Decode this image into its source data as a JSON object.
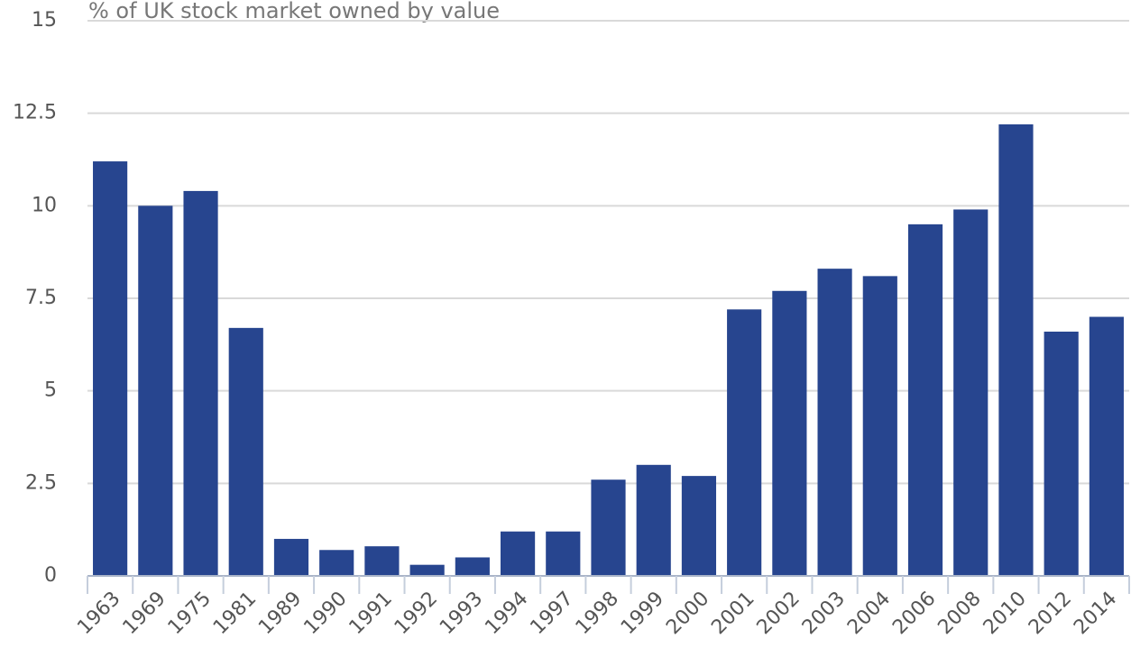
{
  "chart_data": {
    "type": "bar",
    "subtitle": "% of UK stock market owned by value",
    "categories": [
      "1963",
      "1969",
      "1975",
      "1981",
      "1989",
      "1990",
      "1991",
      "1992",
      "1993",
      "1994",
      "1997",
      "1998",
      "1999",
      "2000",
      "2001",
      "2002",
      "2003",
      "2004",
      "2006",
      "2008",
      "2010",
      "2012",
      "2014"
    ],
    "values": [
      11.2,
      10.0,
      10.4,
      6.7,
      1.0,
      0.7,
      0.8,
      0.3,
      0.5,
      1.2,
      1.2,
      2.6,
      3.0,
      2.7,
      7.2,
      7.7,
      8.3,
      8.1,
      9.5,
      9.9,
      12.2,
      6.6,
      7.0
    ],
    "color": "#27458f",
    "ylim": [
      0,
      15
    ],
    "yticks": [
      0,
      2.5,
      5,
      7.5,
      10,
      12.5,
      15
    ],
    "grid": true
  }
}
